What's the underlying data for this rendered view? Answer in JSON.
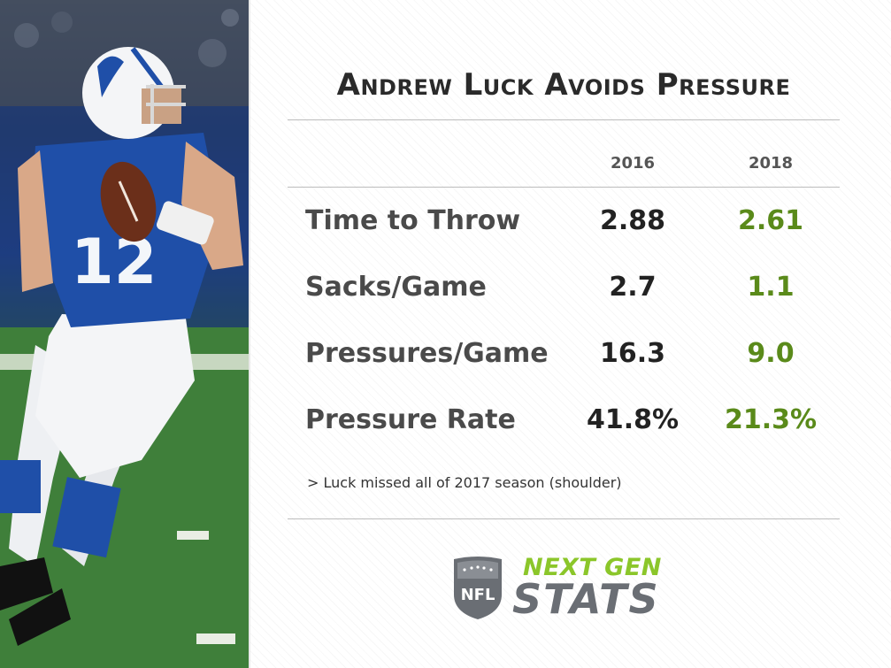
{
  "header": {
    "title": "Andrew Luck Avoids Pressure"
  },
  "columns": [
    "2016",
    "2018"
  ],
  "rows": [
    {
      "label": "Time to Throw",
      "v2016": "2.88",
      "v2018": "2.61"
    },
    {
      "label": "Sacks/Game",
      "v2016": "2.7",
      "v2018": "1.1"
    },
    {
      "label": "Pressures/Game",
      "v2016": "16.3",
      "v2018": "9.0"
    },
    {
      "label": "Pressure Rate",
      "v2016": "41.8%",
      "v2018": "21.3%"
    }
  ],
  "footnote": "> Luck missed all of 2017 season (shoulder)",
  "logo": {
    "top": "NEXT GEN",
    "bottom": "STATS",
    "shield": "NFL"
  },
  "photo": {
    "jersey_number": "12"
  },
  "colors": {
    "highlight_2018": "#5a8a1a",
    "value_2016": "#222222",
    "brand_green": "#8bc62a",
    "brand_gray": "#6a6e74",
    "jersey_blue": "#1f4fa8"
  }
}
